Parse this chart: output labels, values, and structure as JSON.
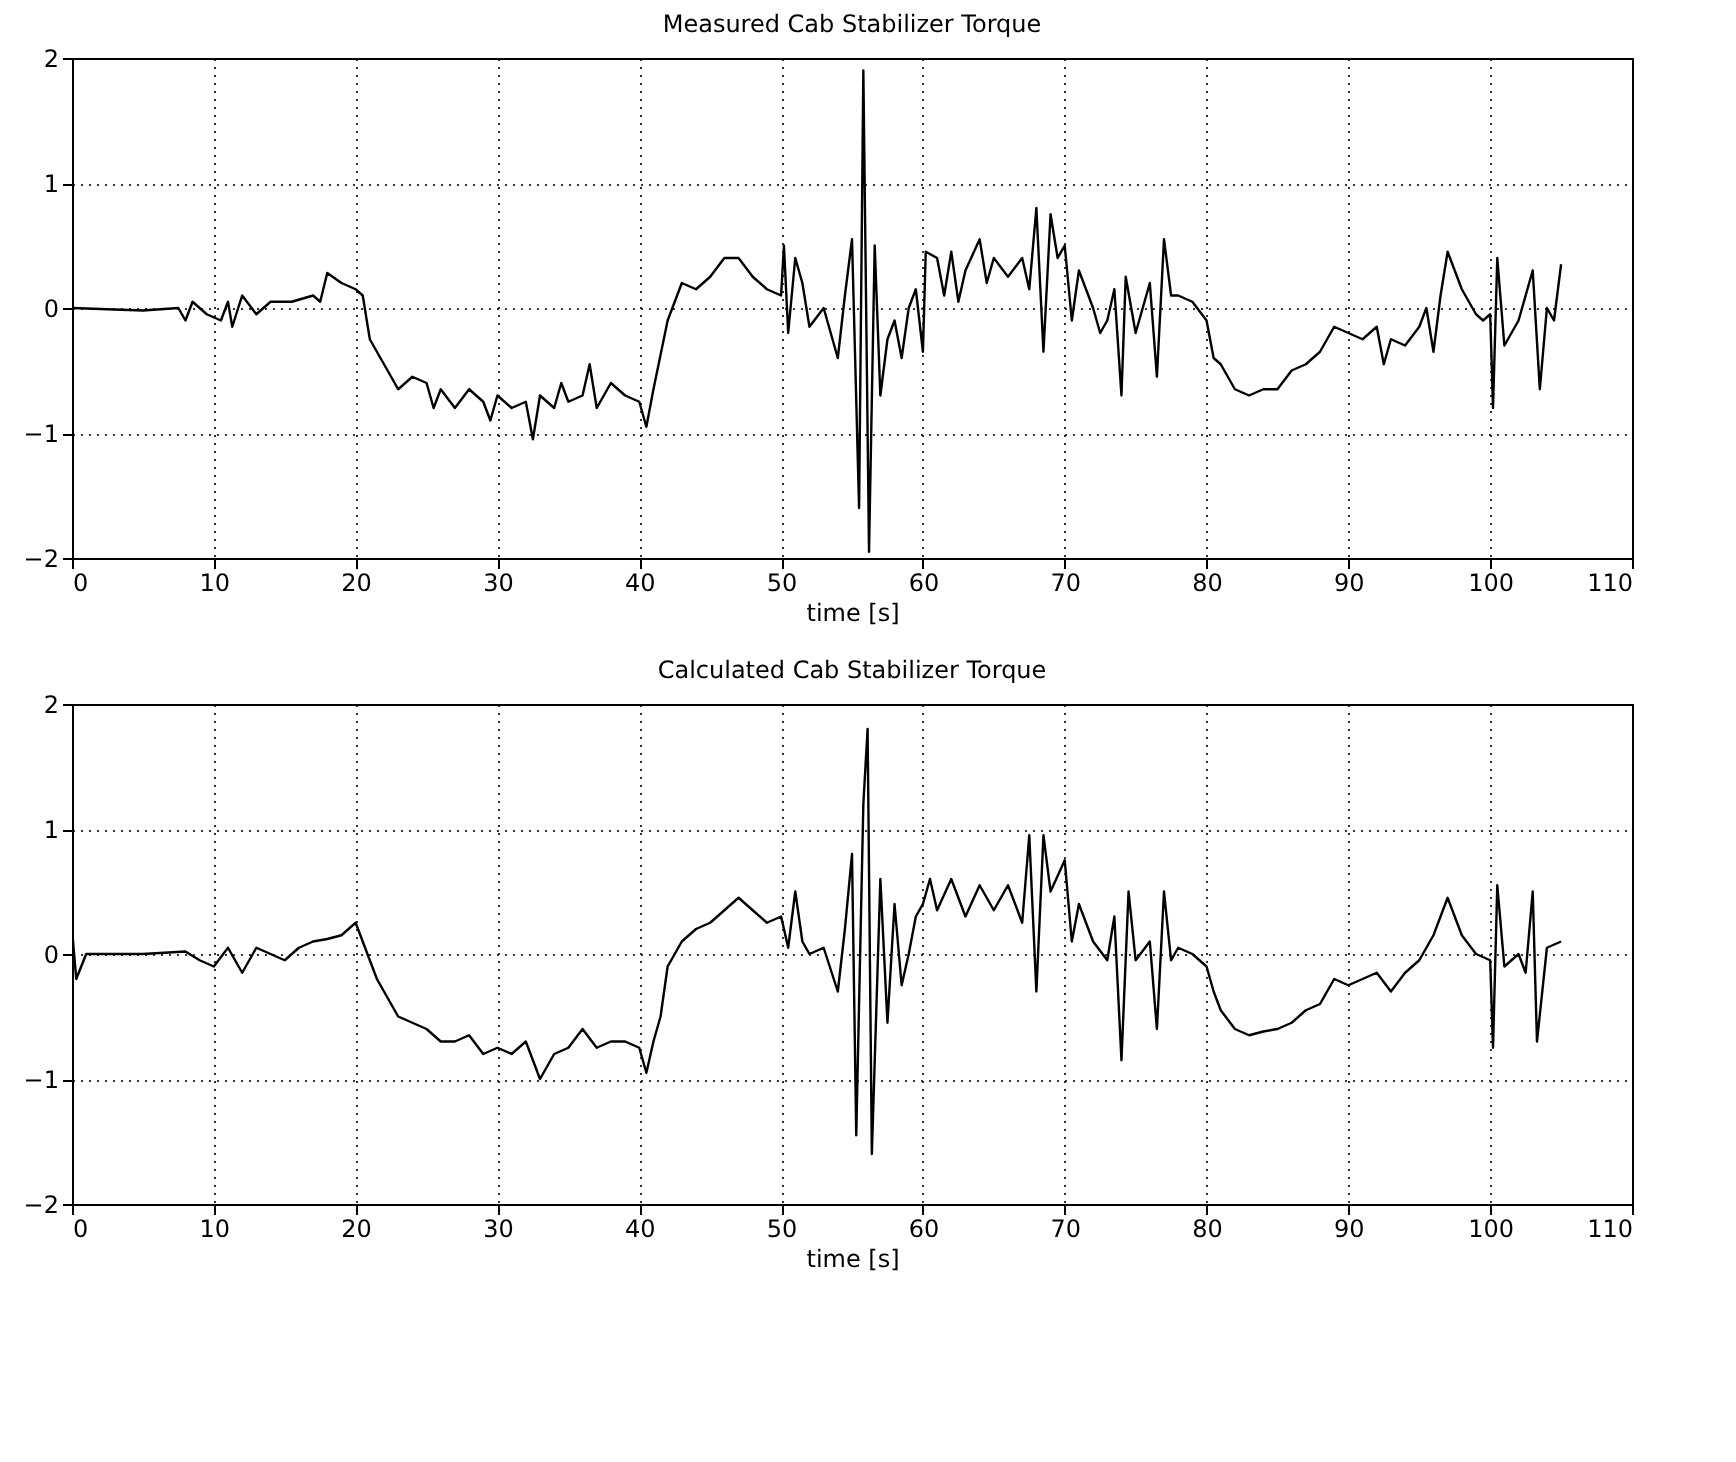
{
  "chart_data": [
    {
      "type": "line",
      "title": "Measured Cab Stabilizer Torque",
      "xlabel": "time [s]",
      "color": "#000000",
      "grid": true,
      "xlim": [
        0,
        110
      ],
      "xticks": [
        0,
        10,
        20,
        30,
        40,
        50,
        60,
        70,
        80,
        90,
        100,
        110
      ],
      "ylim": [
        -2,
        2
      ],
      "yticks": [
        -2,
        -1,
        0,
        1,
        2
      ],
      "x": [
        0,
        5,
        7.5,
        8,
        8.5,
        9.5,
        10.5,
        11,
        11.3,
        12,
        13,
        14,
        15.5,
        17,
        17.5,
        18,
        19,
        20,
        20.5,
        21,
        22,
        23,
        24,
        25,
        25.5,
        26,
        27,
        28,
        29,
        29.5,
        30,
        31,
        32,
        32.5,
        33,
        34,
        34.5,
        35,
        36,
        36.5,
        37,
        38,
        39,
        40,
        40.5,
        41,
        42,
        42.5,
        43,
        44,
        45,
        46,
        47,
        48,
        49,
        50,
        50.2,
        50.5,
        51,
        51.5,
        52,
        53,
        54,
        54.5,
        55,
        55.5,
        55.8,
        56.2,
        56.6,
        57,
        57.5,
        58,
        58.5,
        59,
        59.5,
        60,
        60.2,
        61,
        61.5,
        62,
        62.5,
        63,
        64,
        64.5,
        65,
        66,
        67,
        67.5,
        68,
        68.5,
        69,
        69.5,
        70,
        70.5,
        71,
        72,
        72.5,
        73,
        73.5,
        74,
        74.3,
        75,
        76,
        76.5,
        77,
        77.5,
        78,
        79,
        80,
        80.5,
        81,
        82,
        83,
        84,
        85,
        86,
        87,
        88,
        89,
        90,
        91,
        92,
        92.5,
        93,
        94,
        95,
        95.5,
        96,
        96.5,
        97,
        98,
        99,
        99.5,
        100,
        100.2,
        100.5,
        101,
        102,
        103,
        103.5,
        104,
        104.5,
        105
      ],
      "values": [
        0,
        -0.02,
        0,
        -0.1,
        0.05,
        -0.05,
        -0.1,
        0.05,
        -0.15,
        0.1,
        -0.05,
        0.05,
        0.05,
        0.1,
        0.05,
        0.28,
        0.2,
        0.15,
        0.1,
        -0.25,
        -0.45,
        -0.65,
        -0.55,
        -0.6,
        -0.8,
        -0.65,
        -0.8,
        -0.65,
        -0.75,
        -0.9,
        -0.7,
        -0.8,
        -0.75,
        -1.05,
        -0.7,
        -0.8,
        -0.6,
        -0.75,
        -0.7,
        -0.45,
        -0.8,
        -0.6,
        -0.7,
        -0.75,
        -0.95,
        -0.65,
        -0.1,
        0.05,
        0.2,
        0.15,
        0.25,
        0.4,
        0.4,
        0.25,
        0.15,
        0.1,
        0.5,
        -0.2,
        0.4,
        0.2,
        -0.15,
        0,
        -0.4,
        0.1,
        0.55,
        -1.6,
        1.9,
        -1.95,
        0.5,
        -0.7,
        -0.25,
        -0.1,
        -0.4,
        0,
        0.15,
        -0.35,
        0.45,
        0.4,
        0.1,
        0.45,
        0.05,
        0.3,
        0.55,
        0.2,
        0.4,
        0.25,
        0.4,
        0.15,
        0.8,
        -0.35,
        0.75,
        0.4,
        0.5,
        -0.1,
        0.3,
        0.0,
        -0.2,
        -0.1,
        0.15,
        -0.7,
        0.25,
        -0.2,
        0.2,
        -0.55,
        0.55,
        0.1,
        0.1,
        0.05,
        -0.1,
        -0.4,
        -0.45,
        -0.65,
        -0.7,
        -0.65,
        -0.65,
        -0.5,
        -0.45,
        -0.35,
        -0.15,
        -0.2,
        -0.25,
        -0.15,
        -0.45,
        -0.25,
        -0.3,
        -0.15,
        0.0,
        -0.35,
        0.1,
        0.45,
        0.15,
        -0.05,
        -0.1,
        -0.05,
        -0.8,
        0.4,
        -0.3,
        -0.1,
        0.3,
        -0.65,
        0.0,
        -0.1,
        0.35
      ]
    },
    {
      "type": "line",
      "title": "Calculated Cab Stabilizer Torque",
      "xlabel": "time [s]",
      "color": "#000000",
      "grid": true,
      "xlim": [
        0,
        110
      ],
      "xticks": [
        0,
        10,
        20,
        30,
        40,
        50,
        60,
        70,
        80,
        90,
        100,
        110
      ],
      "ylim": [
        -2,
        2
      ],
      "yticks": [
        -2,
        -1,
        0,
        1,
        2
      ],
      "x": [
        0,
        0.3,
        1,
        5,
        8,
        9,
        10,
        11,
        12,
        13,
        14,
        15,
        16,
        17,
        18,
        19,
        20,
        20.5,
        21,
        21.5,
        22,
        23,
        24,
        25,
        26,
        27,
        28,
        29,
        30,
        31,
        32,
        33,
        34,
        35,
        36,
        37,
        38,
        39,
        40,
        40.5,
        41,
        41.5,
        42,
        43,
        44,
        45,
        46,
        47,
        48,
        49,
        50,
        50.5,
        51,
        51.5,
        52,
        53,
        54,
        54.5,
        55,
        55.3,
        55.8,
        56.1,
        56.4,
        57,
        57.5,
        58,
        58.5,
        59,
        59.5,
        60,
        60.5,
        61,
        62,
        63,
        64,
        65,
        66,
        67,
        67.5,
        68,
        68.5,
        69,
        70,
        70.5,
        71,
        72,
        73,
        73.5,
        74,
        74.5,
        75,
        76,
        76.5,
        77,
        77.5,
        78,
        79,
        80,
        80.5,
        81,
        82,
        83,
        84,
        85,
        86,
        87,
        88,
        89,
        90,
        91,
        92,
        93,
        94,
        95,
        96,
        97,
        98,
        99,
        100,
        100.2,
        100.5,
        101,
        102,
        102.5,
        103,
        103.3,
        104,
        105
      ],
      "values": [
        0.2,
        -0.2,
        0.0,
        0.0,
        0.02,
        -0.05,
        -0.1,
        0.05,
        -0.15,
        0.05,
        0.0,
        -0.05,
        0.05,
        0.1,
        0.12,
        0.15,
        0.25,
        0.1,
        -0.05,
        -0.2,
        -0.3,
        -0.5,
        -0.55,
        -0.6,
        -0.7,
        -0.7,
        -0.65,
        -0.8,
        -0.75,
        -0.8,
        -0.7,
        -1.0,
        -0.8,
        -0.75,
        -0.6,
        -0.75,
        -0.7,
        -0.7,
        -0.75,
        -0.95,
        -0.7,
        -0.5,
        -0.1,
        0.1,
        0.2,
        0.25,
        0.35,
        0.45,
        0.35,
        0.25,
        0.3,
        0.05,
        0.5,
        0.1,
        0.0,
        0.05,
        -0.3,
        0.2,
        0.8,
        -1.45,
        1.2,
        1.8,
        -1.6,
        0.6,
        -0.55,
        0.4,
        -0.25,
        0,
        0.3,
        0.4,
        0.6,
        0.35,
        0.6,
        0.3,
        0.55,
        0.35,
        0.55,
        0.25,
        0.95,
        -0.3,
        0.95,
        0.5,
        0.75,
        0.1,
        0.4,
        0.1,
        -0.05,
        0.3,
        -0.85,
        0.5,
        -0.05,
        0.1,
        -0.6,
        0.5,
        -0.05,
        0.05,
        0.0,
        -0.1,
        -0.3,
        -0.45,
        -0.6,
        -0.65,
        -0.62,
        -0.6,
        -0.55,
        -0.45,
        -0.4,
        -0.2,
        -0.25,
        -0.2,
        -0.15,
        -0.3,
        -0.15,
        -0.05,
        0.15,
        0.45,
        0.15,
        0.0,
        -0.05,
        -0.75,
        0.55,
        -0.1,
        0.0,
        -0.15,
        0.5,
        -0.7,
        0.05,
        0.1
      ]
    }
  ]
}
